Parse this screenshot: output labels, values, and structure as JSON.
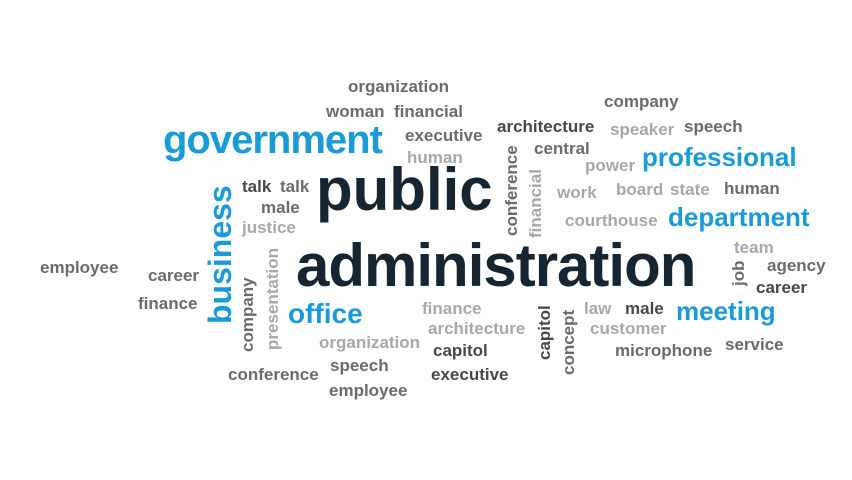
{
  "colors": {
    "background": "#ffffff",
    "primary_dark": "#16252f",
    "accent_blue": "#1a9bd7",
    "mid_gray": "#6b6b6b",
    "light_gray": "#a8a8a8",
    "dark_gray": "#484848"
  },
  "words": {
    "public": "public",
    "administration": "administration",
    "government": "government",
    "professional": "professional",
    "department": "department",
    "meeting": "meeting",
    "office": "office",
    "business": "business",
    "organization_top": "organization",
    "woman": "woman",
    "financial_top": "financial",
    "executive_top": "executive",
    "human_left": "human",
    "architecture_top": "architecture",
    "central": "central",
    "company_top": "company",
    "speaker": "speaker",
    "speech_top": "speech",
    "power": "power",
    "conference_vertical": "conference",
    "financial_vertical": "financial",
    "talk_1": "talk",
    "talk_2": "talk",
    "male_left": "male",
    "justice": "justice",
    "work": "work",
    "board": "board",
    "state": "state",
    "human_right": "human",
    "courthouse": "courthouse",
    "employee_left": "employee",
    "career_left": "career",
    "finance_left": "finance",
    "company_vertical": "company",
    "presentation_vertical": "presentation",
    "team": "team",
    "job_vertical": "job",
    "agency": "agency",
    "career_right": "career",
    "finance_mid": "finance",
    "law": "law",
    "male_right": "male",
    "architecture_bottom": "architecture",
    "customer": "customer",
    "capitol_vertical": "capitol",
    "concept_vertical": "concept",
    "organization_bottom": "organization",
    "capitol_bottom": "capitol",
    "microphone": "microphone",
    "service": "service",
    "conference_bottom": "conference",
    "speech_bottom": "speech",
    "executive_bottom": "executive",
    "employee_bottom": "employee"
  }
}
